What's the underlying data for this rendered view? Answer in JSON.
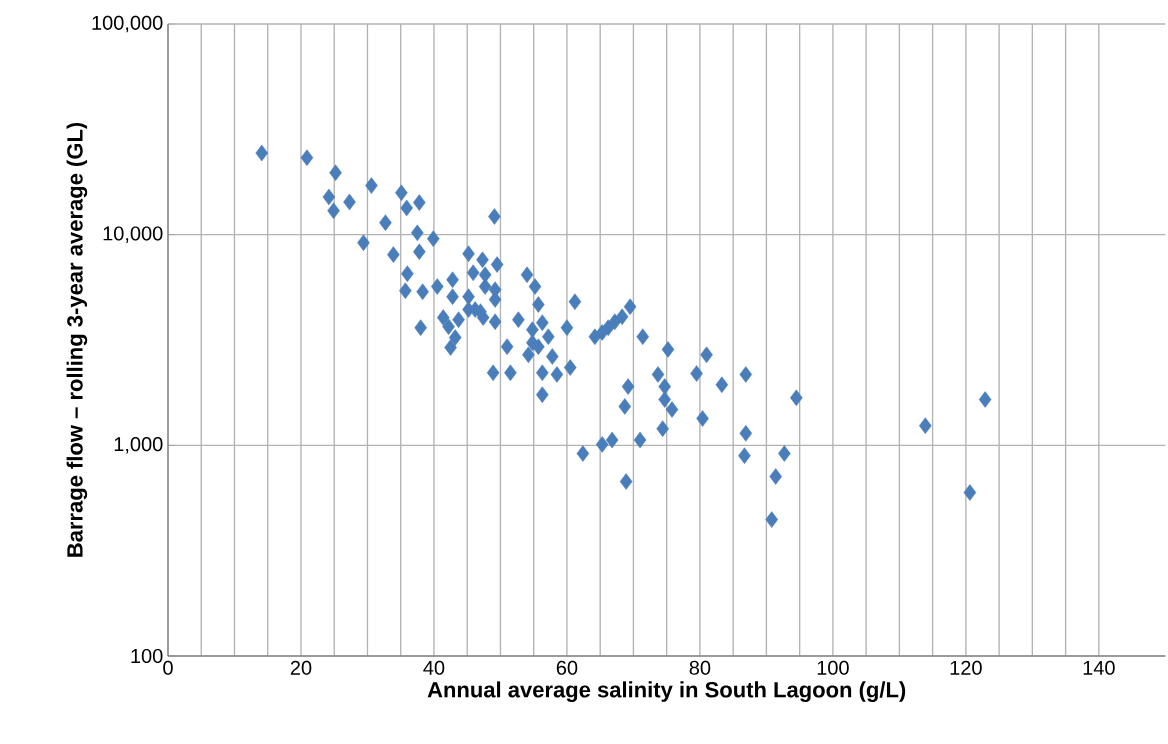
{
  "chart_data": {
    "type": "scatter",
    "xlabel": "Annual average salinity in South Lagoon (g/L)",
    "ylabel": "Barrage flow – rolling 3-year average (GL)",
    "x": [
      14.1,
      20.9,
      25.2,
      24.2,
      24.9,
      27.3,
      30.6,
      32.7,
      29.4,
      33.9,
      35.1,
      35.9,
      37.8,
      49.1,
      37.5,
      39.9,
      37.8,
      36.0,
      35.7,
      38.3,
      38.0,
      40.5,
      42.8,
      45.2,
      47.3,
      49.5,
      45.9,
      42.8,
      45.2,
      47.7,
      49.2,
      49.2,
      46.2,
      41.4,
      43.7,
      47.4,
      49.2,
      42.2,
      43.2,
      42.5,
      52.7,
      54.0,
      55.2,
      55.7,
      61.2,
      56.3,
      54.8,
      57.2,
      60.0,
      54.8,
      55.7,
      54.2,
      57.8,
      51.0,
      48.9,
      51.5,
      56.3,
      58.5,
      60.5,
      56.3,
      64.2,
      65.3,
      66.2,
      67.2,
      68.3,
      69.5,
      71.4,
      75.2,
      81.0,
      73.7,
      79.5,
      83.3,
      86.9,
      74.7,
      69.2,
      68.7,
      74.7,
      75.8,
      74.4,
      80.4,
      71.0,
      66.8,
      65.3,
      62.4,
      68.9,
      86.9,
      86.7,
      94.5,
      122.9,
      113.9,
      92.7,
      91.4,
      120.6,
      90.8,
      45.2,
      47.0,
      47.7
    ],
    "values": [
      24400,
      23200,
      19700,
      15100,
      13000,
      14300,
      17100,
      11400,
      9160,
      8040,
      15800,
      13400,
      14200,
      12200,
      10200,
      9570,
      8300,
      6530,
      5420,
      5360,
      3620,
      5670,
      6110,
      8120,
      7600,
      7210,
      6600,
      5080,
      5080,
      5670,
      5480,
      4920,
      4410,
      4040,
      3950,
      4040,
      3860,
      3660,
      3250,
      2910,
      3950,
      6450,
      5670,
      4660,
      4810,
      3820,
      3540,
      3280,
      3620,
      3070,
      2940,
      2690,
      2640,
      2940,
      2210,
      2210,
      2210,
      2170,
      2340,
      1740,
      3280,
      3430,
      3620,
      3860,
      4080,
      4550,
      3280,
      2850,
      2690,
      2170,
      2190,
      1940,
      2170,
      1900,
      1900,
      1530,
      1650,
      1480,
      1200,
      1340,
      1060,
      1060,
      1010,
      914,
      673,
      1140,
      893,
      1680,
      1650,
      1240,
      914,
      711,
      597,
      444,
      4410,
      4310,
      6450
    ],
    "color": "#4a7ebb",
    "marker": "diamond",
    "log": "y",
    "grid": true,
    "xlim": [
      0,
      150
    ],
    "xticks": [
      0,
      20,
      40,
      60,
      80,
      100,
      120,
      140
    ],
    "ylim": [
      100,
      100000
    ],
    "yticks": [
      100,
      {
        "value": 1000,
        "label": "1,000"
      },
      {
        "value": 10000,
        "label": "10,000"
      },
      {
        "value": 100000,
        "label": "100,000"
      }
    ]
  }
}
